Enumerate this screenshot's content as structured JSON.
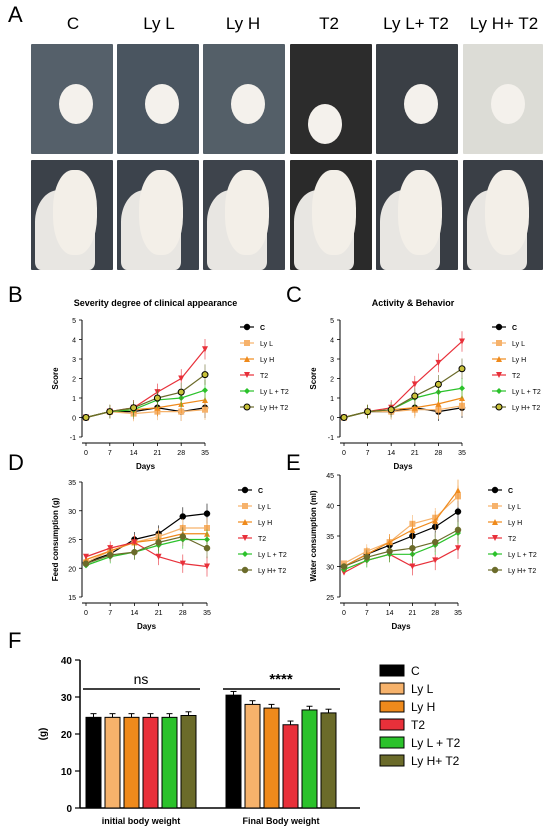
{
  "panels": {
    "a": "A",
    "b": "B",
    "c": "C",
    "d": "D",
    "e": "E",
    "f": "F"
  },
  "groups": [
    "C",
    "Ly L",
    "Ly H",
    "T2",
    "Ly L+ T2",
    "Ly H+ T2"
  ],
  "colors": {
    "C": "#000000",
    "LyL": "#f6b26b",
    "LyH": "#ef8a1c",
    "T2": "#e8303a",
    "LyLT2": "#2bc22b",
    "LyHT2": "#6b6b2a"
  },
  "chart_data": [
    {
      "type": "line",
      "title": "Severity degree of clinical appearance",
      "xlabel": "Days",
      "ylabel": "Score",
      "x": [
        0,
        7,
        14,
        21,
        28,
        35
      ],
      "ylim": [
        -1,
        5
      ],
      "legend": [
        "C",
        "Ly L",
        "Ly H",
        "T2",
        "Ly L + T2",
        "Ly H+ T2"
      ],
      "series": [
        {
          "name": "C",
          "values": [
            0,
            0.3,
            0.3,
            0.5,
            0.3,
            0.5
          ]
        },
        {
          "name": "Ly L",
          "values": [
            0,
            0.3,
            0.2,
            0.3,
            0.3,
            0.4
          ]
        },
        {
          "name": "Ly H",
          "values": [
            0,
            0.3,
            0.4,
            0.5,
            0.7,
            0.9
          ]
        },
        {
          "name": "T2",
          "values": [
            0,
            0.3,
            0.5,
            1.3,
            2.0,
            3.5
          ]
        },
        {
          "name": "Ly L + T2",
          "values": [
            0,
            0.3,
            0.4,
            0.9,
            1.0,
            1.4
          ]
        },
        {
          "name": "Ly H+ T2",
          "values": [
            0,
            0.3,
            0.5,
            1.0,
            1.3,
            2.2
          ]
        }
      ]
    },
    {
      "type": "line",
      "title": "Activity & Behavior",
      "xlabel": "Days",
      "ylabel": "Score",
      "x": [
        0,
        7,
        14,
        21,
        28,
        35
      ],
      "ylim": [
        -1,
        5
      ],
      "legend": [
        "C",
        "Ly L",
        "Ly H",
        "T2",
        "Ly L + T2",
        "Ly H+ T2"
      ],
      "series": [
        {
          "name": "C",
          "values": [
            0,
            0.3,
            0.3,
            0.5,
            0.3,
            0.5
          ]
        },
        {
          "name": "Ly L",
          "values": [
            0,
            0.3,
            0.3,
            0.4,
            0.4,
            0.6
          ]
        },
        {
          "name": "Ly H",
          "values": [
            0,
            0.3,
            0.4,
            0.5,
            0.7,
            1.0
          ]
        },
        {
          "name": "T2",
          "values": [
            0,
            0.3,
            0.5,
            1.7,
            2.8,
            3.9
          ]
        },
        {
          "name": "Ly L + T2",
          "values": [
            0,
            0.3,
            0.4,
            1.0,
            1.3,
            1.5
          ]
        },
        {
          "name": "Ly H+ T2",
          "values": [
            0,
            0.3,
            0.4,
            1.1,
            1.7,
            2.5
          ]
        }
      ]
    },
    {
      "type": "line",
      "xlabel": "Days",
      "ylabel": "Feed consumption (g)",
      "x": [
        0,
        7,
        14,
        21,
        28,
        35
      ],
      "ylim": [
        15,
        35
      ],
      "legend": [
        "C",
        "Ly L",
        "Ly H",
        "T2",
        "Ly L + T2",
        "Ly H+ T2"
      ],
      "series": [
        {
          "name": "C",
          "values": [
            21,
            22.5,
            25,
            26,
            29,
            29.5
          ]
        },
        {
          "name": "Ly L",
          "values": [
            21,
            23,
            24.5,
            25.5,
            27,
            27
          ]
        },
        {
          "name": "Ly H",
          "values": [
            21.5,
            23,
            24.5,
            25,
            26,
            26
          ]
        },
        {
          "name": "T2",
          "values": [
            22,
            23.5,
            24.5,
            22,
            20.8,
            20.3
          ]
        },
        {
          "name": "Ly L + T2",
          "values": [
            20.5,
            22,
            22.8,
            24,
            25,
            25
          ]
        },
        {
          "name": "Ly H+ T2",
          "values": [
            20.8,
            22.3,
            22.8,
            24.5,
            25.5,
            23.5
          ]
        }
      ]
    },
    {
      "type": "line",
      "xlabel": "Days",
      "ylabel": "Water consumption (ml)",
      "x": [
        0,
        7,
        14,
        21,
        28,
        35
      ],
      "ylim": [
        25,
        45
      ],
      "legend": [
        "C",
        "Ly L",
        "Ly H",
        "T2",
        "Ly L + T2",
        "Ly H+ T2"
      ],
      "series": [
        {
          "name": "C",
          "values": [
            30,
            32,
            33.5,
            35,
            36.5,
            39
          ]
        },
        {
          "name": "Ly L",
          "values": [
            30.5,
            32.5,
            34,
            37,
            38,
            41.5
          ]
        },
        {
          "name": "Ly H",
          "values": [
            30,
            32,
            34,
            36,
            37.5,
            42.5
          ]
        },
        {
          "name": "T2",
          "values": [
            29,
            31,
            32,
            30,
            31,
            33
          ]
        },
        {
          "name": "Ly L + T2",
          "values": [
            29.5,
            31,
            32,
            32,
            33.5,
            35.5
          ]
        },
        {
          "name": "Ly H+ T2",
          "values": [
            30,
            31.5,
            32.5,
            33,
            34,
            36
          ]
        }
      ]
    },
    {
      "type": "bar",
      "categories": [
        "initial body weight",
        "Final Body weight"
      ],
      "ylabel": "(g)",
      "ylim": [
        0,
        40
      ],
      "legend": [
        "C",
        "Ly L",
        "Ly H",
        "T2",
        "Ly L + T2",
        "Ly H+ T2"
      ],
      "annotations": [
        "ns",
        "****"
      ],
      "series": [
        {
          "name": "C",
          "values": [
            24.5,
            30.5
          ]
        },
        {
          "name": "Ly L",
          "values": [
            24.5,
            28.0
          ]
        },
        {
          "name": "Ly H",
          "values": [
            24.5,
            27.0
          ]
        },
        {
          "name": "T2",
          "values": [
            24.5,
            22.5
          ]
        },
        {
          "name": "Ly L + T2",
          "values": [
            24.5,
            26.5
          ]
        },
        {
          "name": "Ly H+ T2",
          "values": [
            25.0,
            25.7
          ]
        }
      ]
    }
  ]
}
